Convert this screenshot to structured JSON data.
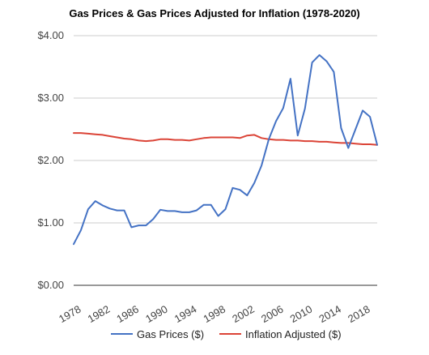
{
  "chart_data": {
    "type": "line",
    "title": "Gas Prices & Gas Prices Adjusted for Inflation (1978-2020)",
    "xlabel": "",
    "ylabel": "",
    "ylim": [
      0,
      4
    ],
    "y_ticks": [
      "$0.00",
      "$1.00",
      "$2.00",
      "$3.00",
      "$4.00"
    ],
    "y_tick_values": [
      0,
      1,
      2,
      3,
      4
    ],
    "x_ticks": [
      "1978",
      "1982",
      "1986",
      "1990",
      "1994",
      "1998",
      "2002",
      "2006",
      "2010",
      "2014",
      "2018"
    ],
    "x_tick_values": [
      1978,
      1982,
      1986,
      1990,
      1994,
      1998,
      2002,
      2006,
      2010,
      2014,
      2018
    ],
    "xlim": [
      1978,
      2020
    ],
    "grid": true,
    "legend_position": "bottom",
    "x": [
      1978,
      1979,
      1980,
      1981,
      1982,
      1983,
      1984,
      1985,
      1986,
      1987,
      1988,
      1989,
      1990,
      1991,
      1992,
      1993,
      1994,
      1995,
      1996,
      1997,
      1998,
      1999,
      2000,
      2001,
      2002,
      2003,
      2004,
      2005,
      2006,
      2007,
      2008,
      2009,
      2010,
      2011,
      2012,
      2013,
      2014,
      2015,
      2016,
      2017,
      2018,
      2019,
      2020
    ],
    "series": [
      {
        "name": "Gas Prices ($)",
        "color": "#4472c4",
        "values": [
          0.66,
          0.88,
          1.22,
          1.35,
          1.28,
          1.23,
          1.2,
          1.2,
          0.93,
          0.96,
          0.96,
          1.06,
          1.21,
          1.19,
          1.19,
          1.17,
          1.17,
          1.2,
          1.29,
          1.29,
          1.11,
          1.22,
          1.56,
          1.53,
          1.44,
          1.64,
          1.92,
          2.34,
          2.63,
          2.84,
          3.31,
          2.4,
          2.83,
          3.57,
          3.69,
          3.59,
          3.42,
          2.52,
          2.2,
          2.5,
          2.8,
          2.7,
          2.25
        ]
      },
      {
        "name": "Inflation Adjusted ($)",
        "color": "#db4437",
        "values": [
          2.44,
          2.44,
          2.43,
          2.42,
          2.41,
          2.39,
          2.37,
          2.35,
          2.34,
          2.32,
          2.31,
          2.32,
          2.34,
          2.34,
          2.33,
          2.33,
          2.32,
          2.34,
          2.36,
          2.37,
          2.37,
          2.37,
          2.37,
          2.36,
          2.4,
          2.41,
          2.36,
          2.34,
          2.33,
          2.33,
          2.32,
          2.32,
          2.31,
          2.31,
          2.3,
          2.3,
          2.29,
          2.28,
          2.28,
          2.27,
          2.26,
          2.26,
          2.25
        ]
      }
    ]
  }
}
